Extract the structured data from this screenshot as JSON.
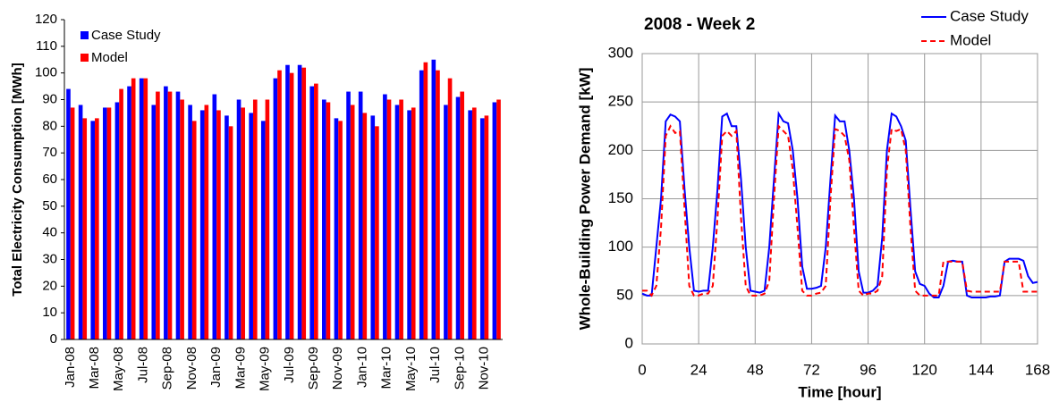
{
  "chart_data": [
    {
      "type": "bar",
      "ylabel": "Total Electricity Consumption [MWh]",
      "categories": [
        "Jan-08",
        null,
        "Mar-08",
        null,
        "May-08",
        null,
        "Jul-08",
        null,
        "Sep-08",
        null,
        "Nov-08",
        null,
        "Jan-09",
        null,
        "Mar-09",
        null,
        "May-09",
        null,
        "Jul-09",
        null,
        "Sep-09",
        null,
        "Nov-09",
        null,
        "Jan-10",
        null,
        "Mar-10",
        null,
        "May-10",
        null,
        "Jul-10",
        null,
        "Sep-10",
        null,
        "Nov-10",
        null
      ],
      "series": [
        {
          "name": "Case Study",
          "color": "#0000ff",
          "values": [
            94,
            88,
            82,
            87,
            89,
            95,
            98,
            88,
            95,
            93,
            88,
            86,
            92,
            84,
            90,
            85,
            82,
            98,
            103,
            103,
            95,
            90,
            83,
            93,
            93,
            84,
            92,
            88,
            86,
            101,
            105,
            88,
            91,
            86,
            83,
            89
          ]
        },
        {
          "name": "Model",
          "color": "#ff0000",
          "values": [
            87,
            83,
            83,
            87,
            94,
            98,
            98,
            93,
            93,
            90,
            82,
            88,
            86,
            80,
            87,
            90,
            90,
            101,
            100,
            102,
            96,
            89,
            82,
            88,
            85,
            80,
            90,
            90,
            87,
            104,
            101,
            98,
            93,
            87,
            84,
            90
          ]
        }
      ],
      "ylim": [
        0,
        120
      ],
      "yticks": [
        0,
        10,
        20,
        30,
        40,
        50,
        60,
        70,
        80,
        90,
        100,
        110,
        120
      ],
      "grid": false,
      "legend": "top-left"
    },
    {
      "type": "line",
      "title": "2008 - Week 2",
      "xlabel": "Time [hour]",
      "ylabel": "Whole-Building Power Demand [kW]",
      "x": [
        0,
        2,
        4,
        6,
        8,
        10,
        12,
        14,
        16,
        18,
        20,
        22,
        24,
        26,
        28,
        30,
        32,
        34,
        36,
        38,
        40,
        42,
        44,
        46,
        48,
        50,
        52,
        54,
        56,
        58,
        60,
        62,
        64,
        66,
        68,
        70,
        72,
        74,
        76,
        78,
        80,
        82,
        84,
        86,
        88,
        90,
        92,
        94,
        96,
        98,
        100,
        102,
        104,
        106,
        108,
        110,
        112,
        114,
        116,
        118,
        120,
        122,
        124,
        126,
        128,
        130,
        132,
        134,
        136,
        138,
        140,
        142,
        144,
        146,
        148,
        150,
        152,
        154,
        156,
        158,
        160,
        162,
        164,
        166,
        168
      ],
      "series": [
        {
          "name": "Case Study",
          "color": "#0000ff",
          "line_style": "solid",
          "values": [
            52,
            50,
            50,
            100,
            150,
            230,
            237,
            235,
            230,
            160,
            100,
            55,
            54,
            55,
            55,
            100,
            160,
            235,
            238,
            225,
            225,
            170,
            100,
            55,
            54,
            53,
            55,
            100,
            170,
            238,
            230,
            228,
            200,
            150,
            80,
            57,
            57,
            58,
            60,
            100,
            170,
            236,
            230,
            230,
            200,
            150,
            75,
            53,
            53,
            55,
            60,
            110,
            200,
            238,
            235,
            225,
            210,
            140,
            75,
            62,
            60,
            52,
            48,
            48,
            60,
            85,
            86,
            85,
            85,
            50,
            48,
            48,
            48,
            48,
            49,
            49,
            50,
            85,
            88,
            88,
            88,
            86,
            70,
            63,
            64
          ]
        },
        {
          "name": "Model",
          "color": "#ff0000",
          "line_style": "dashed",
          "values": [
            55,
            55,
            50,
            60,
            120,
            215,
            225,
            218,
            220,
            140,
            60,
            50,
            50,
            52,
            52,
            60,
            130,
            215,
            220,
            215,
            220,
            130,
            60,
            50,
            50,
            50,
            52,
            65,
            150,
            225,
            220,
            215,
            180,
            120,
            55,
            50,
            50,
            52,
            53,
            60,
            150,
            222,
            220,
            215,
            190,
            120,
            55,
            50,
            52,
            52,
            55,
            70,
            180,
            222,
            220,
            222,
            200,
            120,
            55,
            50,
            50,
            50,
            50,
            50,
            85,
            85,
            85,
            85,
            85,
            55,
            54,
            54,
            54,
            54,
            54,
            54,
            54,
            85,
            85,
            85,
            85,
            54,
            54,
            54,
            54
          ]
        }
      ],
      "xlim": [
        0,
        168
      ],
      "xticks": [
        0,
        24,
        48,
        72,
        96,
        120,
        144,
        168
      ],
      "ylim": [
        0,
        300
      ],
      "yticks": [
        0,
        50,
        100,
        150,
        200,
        250,
        300
      ],
      "grid": true,
      "legend": "top-right"
    }
  ]
}
